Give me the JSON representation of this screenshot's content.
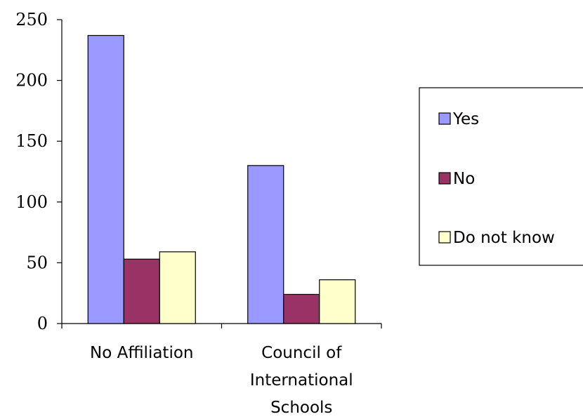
{
  "chart_data": {
    "type": "bar",
    "title": "",
    "xlabel": "",
    "ylabel": "",
    "categories": [
      [
        "No Affiliation"
      ],
      [
        "Council of",
        "International",
        "Schools"
      ]
    ],
    "series": [
      {
        "name": "Yes",
        "values": [
          237,
          130
        ],
        "color": "#9999ff"
      },
      {
        "name": "No",
        "values": [
          53,
          24
        ],
        "color": "#993366"
      },
      {
        "name": "Do not know",
        "values": [
          59,
          36
        ],
        "color": "#ffffcc"
      }
    ],
    "ylim": [
      0,
      250
    ],
    "yticks": [
      0,
      50,
      100,
      150,
      200,
      250
    ],
    "grid": false,
    "legend": {
      "position": "right"
    }
  }
}
